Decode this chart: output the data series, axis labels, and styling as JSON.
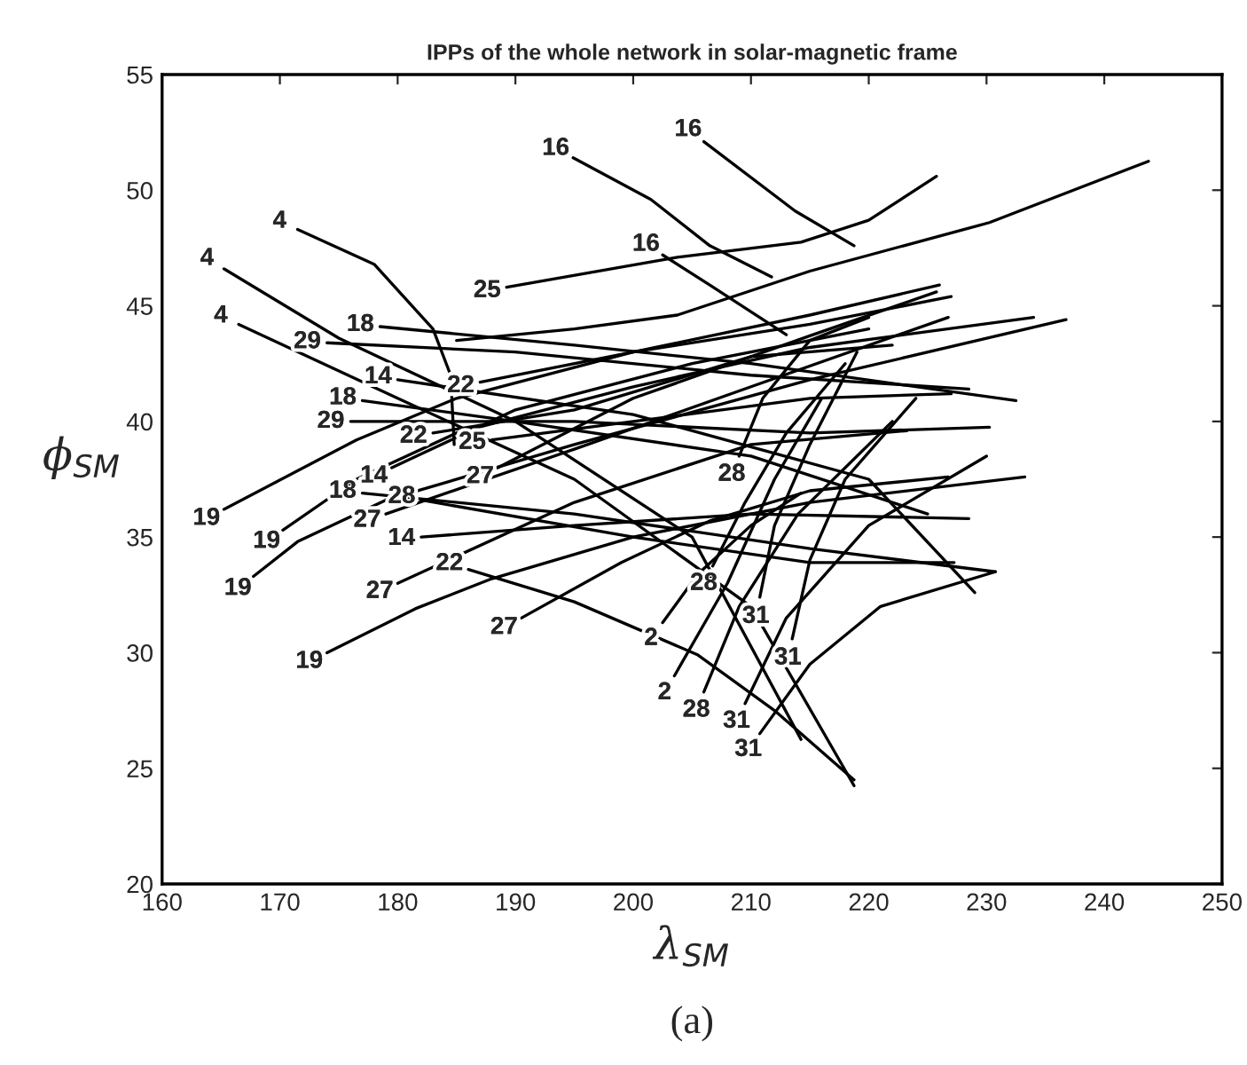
{
  "chart_data": {
    "type": "line",
    "title": "IPPs of the whole network in solar-magnetic frame",
    "xlabel": "λ$_{SM}$",
    "ylabel": "ϕ$_{SM}$",
    "annotations": [
      "(a)"
    ],
    "xlim": [
      160,
      250
    ],
    "ylim": [
      20,
      55
    ],
    "xticks": [
      160,
      170,
      180,
      190,
      200,
      210,
      220,
      230,
      240,
      250
    ],
    "yticks": [
      20,
      25,
      30,
      35,
      40,
      45,
      50,
      55
    ],
    "grid": false,
    "legend": false,
    "line_style": "solid",
    "marker": "none",
    "series": [
      {
        "name": "16",
        "color": "#000000",
        "x": [
          194.9,
          201.5,
          206.5,
          211.75
        ],
        "values": [
          51.4,
          49.6,
          47.6,
          46.25
        ]
      },
      {
        "name": "16",
        "color": "#000000",
        "x": [
          206,
          213.75,
          218.75
        ],
        "values": [
          52.1,
          49.1,
          47.6
        ]
      },
      {
        "name": "16",
        "color": "#000000",
        "x": [
          202.5,
          206.5,
          213
        ],
        "values": [
          47.2,
          45.9,
          43.75
        ]
      },
      {
        "name": "25",
        "color": "#000000",
        "x": [
          189.25,
          203.75,
          214.25,
          220,
          225.75
        ],
        "values": [
          45.8,
          47.1,
          47.75,
          48.7,
          50.6
        ]
      },
      {
        "color": "#000000",
        "x": [
          185,
          195,
          203.75,
          215,
          230.25,
          243.75
        ],
        "values": [
          43.5,
          44.0,
          44.6,
          46.5,
          48.6,
          51.25
        ]
      },
      {
        "name": "4",
        "color": "#000000",
        "x": [
          171.5,
          178,
          183,
          184.5,
          184.8
        ],
        "values": [
          48.3,
          46.8,
          44.0,
          42.0,
          39.0
        ]
      },
      {
        "name": "4",
        "color": "#000000",
        "x": [
          165.25,
          175,
          190,
          205,
          214.25
        ],
        "values": [
          46.6,
          43.6,
          40.0,
          35.0,
          26.25
        ]
      },
      {
        "name": "4",
        "color": "#000000",
        "x": [
          166.5,
          180,
          195,
          210,
          218.75
        ],
        "values": [
          44.2,
          41.0,
          37.5,
          32.0,
          24.25
        ]
      },
      {
        "name": "18",
        "color": "#000000",
        "x": [
          178.5,
          195,
          210,
          232.5
        ],
        "values": [
          44.1,
          43.3,
          42.5,
          40.9
        ]
      },
      {
        "name": "29",
        "color": "#000000",
        "x": [
          174,
          190,
          210,
          228.5
        ],
        "values": [
          43.4,
          43.0,
          42.0,
          41.4
        ]
      },
      {
        "name": "14",
        "color": "#000000",
        "x": [
          180,
          200,
          220,
          229
        ],
        "values": [
          41.8,
          40.3,
          37.5,
          32.6
        ]
      },
      {
        "name": "22",
        "color": "#000000",
        "x": [
          187,
          200,
          215,
          226
        ],
        "values": [
          41.7,
          43.0,
          44.6,
          45.9
        ]
      },
      {
        "name": "29",
        "color": "#000000",
        "x": [
          176,
          195,
          215,
          230.25
        ],
        "values": [
          40.0,
          40.0,
          39.5,
          39.75
        ]
      },
      {
        "name": "18",
        "color": "#000000",
        "x": [
          177,
          190,
          210,
          225
        ],
        "values": [
          40.9,
          40.0,
          38.5,
          36.0
        ]
      },
      {
        "name": "14",
        "color": "#000000",
        "x": [
          179.5,
          190,
          205,
          220
        ],
        "values": [
          38.0,
          40.5,
          42.5,
          44.0
        ]
      },
      {
        "name": "22",
        "color": "#000000",
        "x": [
          183,
          195,
          210,
          222
        ],
        "values": [
          39.5,
          40.5,
          42.8,
          43.3
        ]
      },
      {
        "name": "25",
        "color": "#000000",
        "x": [
          188,
          200,
          215,
          227
        ],
        "values": [
          39.2,
          40.0,
          41.0,
          41.2
        ]
      },
      {
        "name": "27",
        "color": "#000000",
        "x": [
          188.5,
          200,
          215,
          225.75
        ],
        "values": [
          38.0,
          41.0,
          43.7,
          45.6
        ]
      },
      {
        "name": "18",
        "color": "#000000",
        "x": [
          177,
          195,
          215,
          230.75
        ],
        "values": [
          36.9,
          36.0,
          34.5,
          33.5
        ]
      },
      {
        "name": "28",
        "color": "#000000",
        "x": [
          182,
          200,
          215,
          227.25
        ],
        "values": [
          36.6,
          35.0,
          33.9,
          33.9
        ]
      },
      {
        "name": "27",
        "color": "#000000",
        "x": [
          179,
          195,
          210,
          226.75
        ],
        "values": [
          36.0,
          38.8,
          41.5,
          44.5
        ]
      },
      {
        "name": "19",
        "color": "#000000",
        "x": [
          165.25,
          176.5,
          185,
          200,
          215,
          227
        ],
        "values": [
          36.2,
          39.2,
          41.0,
          43.0,
          44.2,
          45.4
        ]
      },
      {
        "name": "19",
        "color": "#000000",
        "x": [
          170.25,
          176.5,
          185,
          200,
          215,
          234
        ],
        "values": [
          35.3,
          37.5,
          39.5,
          41.5,
          43.2,
          44.5
        ]
      },
      {
        "name": "19",
        "color": "#000000",
        "x": [
          167.75,
          171.5,
          179,
          195,
          215,
          236.75
        ],
        "values": [
          33.3,
          34.8,
          36.6,
          39.0,
          41.8,
          44.4
        ]
      },
      {
        "name": "19",
        "color": "#000000",
        "x": [
          174,
          181.5,
          188,
          200,
          215,
          233.25
        ],
        "values": [
          30.0,
          31.9,
          33.2,
          35.0,
          36.5,
          37.6
        ]
      },
      {
        "name": "27",
        "color": "#000000",
        "x": [
          180,
          195,
          210,
          223.25
        ],
        "values": [
          33.0,
          36.5,
          39.0,
          39.6
        ]
      },
      {
        "name": "14",
        "color": "#000000",
        "x": [
          182,
          195,
          210,
          228.5
        ],
        "values": [
          35.0,
          35.5,
          36.0,
          35.8
        ]
      },
      {
        "name": "22",
        "color": "#000000",
        "x": [
          186,
          195,
          205.5,
          212,
          218.75
        ],
        "values": [
          33.6,
          32.2,
          29.9,
          27.5,
          24.5
        ]
      },
      {
        "name": "27",
        "color": "#000000",
        "x": [
          190.5,
          199,
          206.5,
          215,
          226.75
        ],
        "values": [
          31.5,
          33.9,
          35.7,
          37.0,
          37.6
        ]
      },
      {
        "name": "2",
        "color": "#000000",
        "x": [
          202.5,
          205.5,
          210,
          214.25
        ],
        "values": [
          31.3,
          33.4,
          35.5,
          36.9
        ]
      },
      {
        "name": "2",
        "color": "#000000",
        "x": [
          203.5,
          208,
          212,
          216
        ],
        "values": [
          29.0,
          33.0,
          37.5,
          41.0
        ]
      },
      {
        "name": "28",
        "color": "#000000",
        "x": [
          206,
          209,
          214,
          222
        ],
        "values": [
          28.3,
          32.0,
          36.0,
          40.0
        ]
      },
      {
        "name": "28",
        "color": "#000000",
        "x": [
          206.75,
          209.5,
          213,
          218
        ],
        "values": [
          33.75,
          36.5,
          39.5,
          42.5
        ]
      },
      {
        "name": "28",
        "color": "#000000",
        "x": [
          209,
          211,
          215,
          220
        ],
        "values": [
          38.5,
          41.0,
          43.5,
          44.5
        ]
      },
      {
        "name": "31",
        "color": "#000000",
        "x": [
          210.75,
          212,
          215,
          219
        ],
        "values": [
          32.4,
          35.5,
          39.0,
          43.0
        ]
      },
      {
        "name": "31",
        "color": "#000000",
        "x": [
          213.5,
          215,
          218,
          224
        ],
        "values": [
          30.6,
          34.0,
          37.5,
          41.0
        ]
      },
      {
        "name": "31",
        "color": "#000000",
        "x": [
          209.5,
          213,
          220,
          230
        ],
        "values": [
          27.8,
          31.5,
          35.5,
          38.5
        ]
      },
      {
        "name": "31",
        "color": "#000000",
        "x": [
          210.75,
          215,
          221,
          230.75
        ],
        "values": [
          26.5,
          29.5,
          32.0,
          33.5
        ]
      }
    ]
  }
}
